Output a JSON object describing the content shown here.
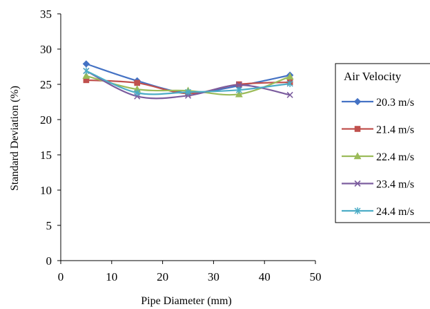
{
  "chart_data": {
    "type": "line",
    "title": "",
    "xlabel": "Pipe Diameter (mm)",
    "ylabel": "Standard Deviation (%)",
    "xlim": [
      0,
      50
    ],
    "ylim": [
      0,
      35
    ],
    "xticks": [
      "0",
      "10",
      "20",
      "30",
      "40",
      "50"
    ],
    "yticks": [
      "0",
      "5",
      "10",
      "15",
      "20",
      "25",
      "30",
      "35"
    ],
    "grid": false,
    "smooth": true,
    "legend": {
      "title": "Air Velocity",
      "placement": "right"
    },
    "series": [
      {
        "name": "20.3 m/s",
        "color": "#4472C4",
        "marker": "diamond",
        "x": [
          5,
          15,
          25,
          35,
          45
        ],
        "y": [
          27.9,
          25.5,
          23.8,
          24.8,
          26.3
        ]
      },
      {
        "name": "21.4 m/s",
        "color": "#C0504D",
        "marker": "square",
        "x": [
          5,
          15,
          25,
          35,
          45
        ],
        "y": [
          25.6,
          25.2,
          23.7,
          25.0,
          25.3
        ]
      },
      {
        "name": "22.4 m/s",
        "color": "#9BBB59",
        "marker": "triangle",
        "x": [
          5,
          15,
          25,
          35,
          45
        ],
        "y": [
          26.2,
          24.3,
          24.1,
          23.6,
          26.1
        ]
      },
      {
        "name": "23.4 m/s",
        "color": "#7B5C9E",
        "marker": "x",
        "x": [
          5,
          15,
          25,
          35,
          45
        ],
        "y": [
          26.9,
          23.3,
          23.4,
          24.9,
          23.5
        ]
      },
      {
        "name": "24.4 m/s",
        "color": "#4BACC6",
        "marker": "star",
        "x": [
          5,
          15,
          25,
          35,
          45
        ],
        "y": [
          26.9,
          23.8,
          23.9,
          24.2,
          25.1
        ]
      }
    ]
  }
}
